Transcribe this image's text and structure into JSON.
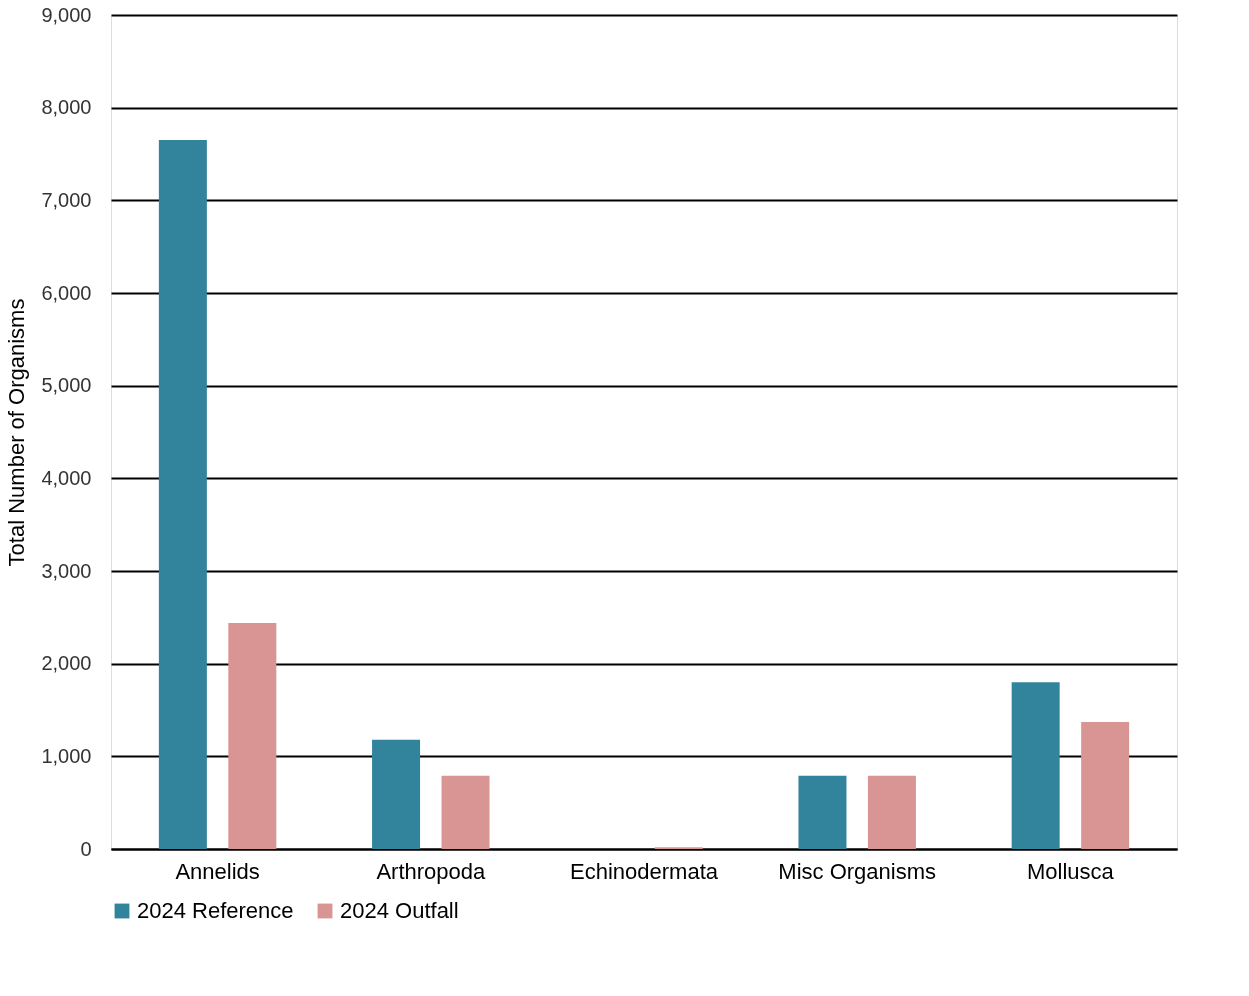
{
  "chart_data": {
    "type": "bar",
    "ylabel": "Total Number of Organisms",
    "categories": [
      "Annelids",
      "Arthropoda",
      "Echinodermata",
      "Misc Organisms",
      "Mollusca"
    ],
    "series": [
      {
        "name": "2024 Reference",
        "color": "#31849b",
        "values": [
          7650,
          1180,
          0,
          790,
          1800
        ]
      },
      {
        "name": "2024 Outfall",
        "color": "#d99594",
        "values": [
          2440,
          790,
          20,
          790,
          1370
        ]
      }
    ],
    "ylim": [
      0,
      9000
    ],
    "yticks": [
      {
        "value": 0,
        "label": "0"
      },
      {
        "value": 1000,
        "label": "1,000"
      },
      {
        "value": 2000,
        "label": "2,000"
      },
      {
        "value": 3000,
        "label": "3,000"
      },
      {
        "value": 4000,
        "label": "4,000"
      },
      {
        "value": 5000,
        "label": "5,000"
      },
      {
        "value": 6000,
        "label": "6,000"
      },
      {
        "value": 7000,
        "label": "7,000"
      },
      {
        "value": 8000,
        "label": "8,000"
      },
      {
        "value": 9000,
        "label": "9,000"
      }
    ],
    "grid": "y",
    "legend": "bottom"
  }
}
